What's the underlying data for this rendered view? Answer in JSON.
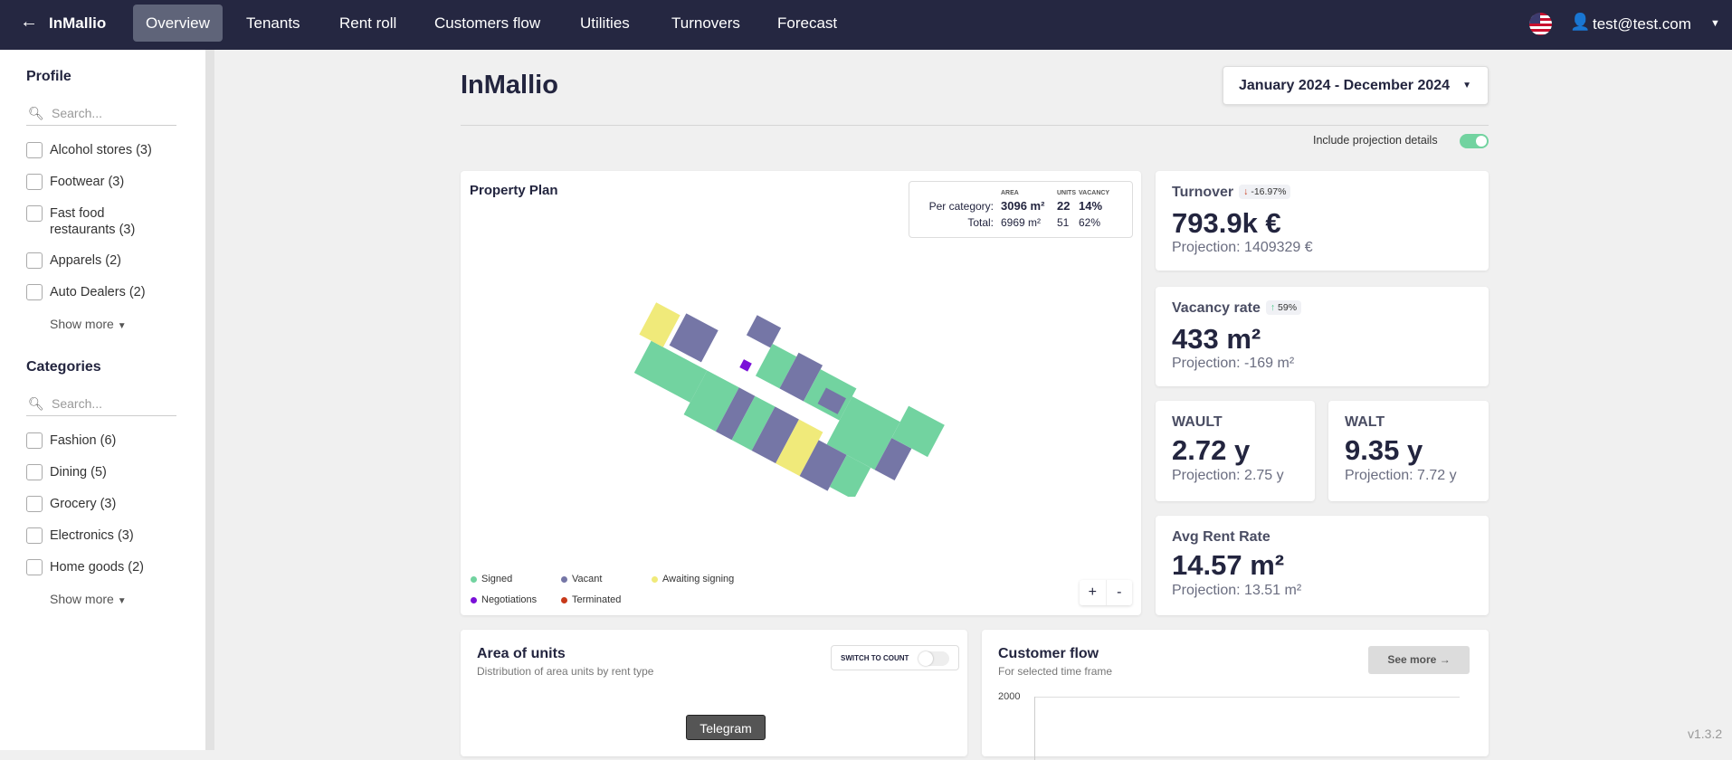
{
  "topbar": {
    "back_icon": "arrow-left-icon",
    "brand": "InMallio",
    "tabs": [
      "Overview",
      "Tenants",
      "Rent roll",
      "Customers flow",
      "Utilities",
      "Turnovers",
      "Forecast"
    ],
    "active_tab": "Overview",
    "flag_icon": "us-flag-icon",
    "user": "test@test.com"
  },
  "sidebar": {
    "profile": {
      "title": "Profile",
      "search_placeholder": "Search...",
      "items": [
        "Alcohol stores (3)",
        "Footwear (3)",
        "Fast food restaurants (3)",
        "Apparels (2)",
        "Auto Dealers (2)"
      ],
      "show_more": "Show more"
    },
    "categories": {
      "title": "Categories",
      "search_placeholder": "Search...",
      "items": [
        "Fashion (6)",
        "Dining (5)",
        "Grocery (3)",
        "Electronics (3)",
        "Home goods (2)"
      ],
      "show_more": "Show more"
    }
  },
  "header": {
    "title": "InMallio",
    "date_range": "January 2024 - December 2024",
    "projection_toggle": "Include projection details",
    "projection_on": true
  },
  "plan": {
    "title": "Property Plan",
    "cols": [
      "AREA",
      "UNITS",
      "VACANCY"
    ],
    "per_category_label": "Per category:",
    "per_category": [
      "3096 m²",
      "22",
      "14%"
    ],
    "total_label": "Total:",
    "total": [
      "6969 m²",
      "51",
      "62%"
    ],
    "legend": [
      {
        "label": "Signed",
        "color": "#72d3a0"
      },
      {
        "label": "Vacant",
        "color": "#7576a6"
      },
      {
        "label": "Awaiting signing",
        "color": "#f0ea7a"
      },
      {
        "label": "Negotiations",
        "color": "#7a10d8"
      },
      {
        "label": "Terminated",
        "color": "#c8391a"
      }
    ],
    "zoom_in": "+",
    "zoom_out": "-"
  },
  "kpis": {
    "turnover": {
      "title": "Turnover",
      "change": "-16.97%",
      "direction": "down",
      "value": "793.9k €",
      "projection": "Projection: 1409329 €"
    },
    "vacancy": {
      "title": "Vacancy rate",
      "change": "59%",
      "direction": "up",
      "value": "433 m²",
      "projection": "Projection: -169 m²"
    },
    "wault": {
      "title": "WAULT",
      "value": "2.72 y",
      "projection": "Projection: 2.75 y"
    },
    "walt": {
      "title": "WALT",
      "value": "9.35 y",
      "projection": "Projection: 7.72 y"
    },
    "avg_rent": {
      "title": "Avg Rent Rate",
      "value": "14.57 m²",
      "projection": "Projection: 13.51 m²"
    }
  },
  "area_units": {
    "title": "Area of units",
    "subtitle": "Distribution of area units by rent type",
    "switch_label": "SWITCH TO COUNT",
    "tooltip": "Telegram"
  },
  "customer_flow": {
    "title": "Customer flow",
    "subtitle": "For selected time frame",
    "see_more": "See more",
    "y_tick": "2000"
  },
  "version": "v1.3.2"
}
